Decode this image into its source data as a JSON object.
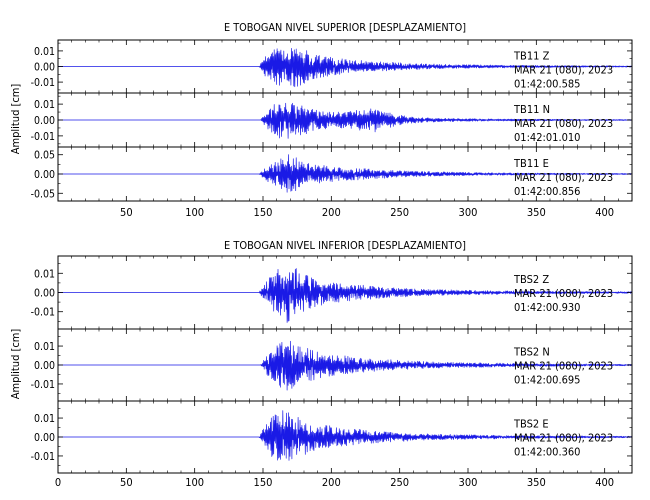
{
  "chart_data": [
    {
      "type": "line",
      "title": "E TOBOGAN NIVEL SUPERIOR [DESPLAZAMIENTO]",
      "ylabel": "Amplitud [cm]",
      "xlim": [
        0,
        420
      ],
      "xticks": [
        50,
        100,
        150,
        200,
        250,
        300,
        350,
        400
      ],
      "panels": [
        {
          "station": "TB11",
          "component": "Z",
          "date": "MAR 21 (080), 2023",
          "time": "01:42:00.585",
          "ylim": [
            -0.017,
            0.017
          ],
          "yticks": [
            "0.01",
            "0.00",
            "-0.01"
          ],
          "peak": 0.0145,
          "series": {
            "x": [
              0,
              147,
              152,
              158,
              163,
              167,
              171,
              175,
              179,
              184,
              190,
              196,
              203,
              212,
              222,
              232,
              245,
              258,
              275,
              295,
              320,
              350,
              380,
              410,
              420
            ],
            "env": [
              0,
              0,
              0.5,
              0.75,
              0.9,
              0.85,
              1.0,
              0.9,
              0.82,
              0.68,
              0.52,
              0.45,
              0.38,
              0.3,
              0.27,
              0.22,
              0.18,
              0.14,
              0.11,
              0.085,
              0.065,
              0.05,
              0.04,
              0.03,
              0.03
            ]
          }
        },
        {
          "station": "TB11",
          "component": "N",
          "date": "MAR 21 (080), 2023",
          "time": "01:42:01.010",
          "ylim": [
            -0.017,
            0.017
          ],
          "yticks": [
            "0.01",
            "0.00",
            "-0.01"
          ],
          "peak": 0.0125,
          "series": {
            "x": [
              0,
              148,
              153,
              158,
              164,
              170,
              176,
              182,
              188,
              194,
              200,
              208,
              216,
              225,
              232,
              238,
              244,
              250,
              258,
              268,
              282,
              300,
              330,
              370,
              420
            ],
            "env": [
              0,
              0,
              0.45,
              0.8,
              1.0,
              0.92,
              0.8,
              0.7,
              0.55,
              0.48,
              0.44,
              0.42,
              0.48,
              0.55,
              0.6,
              0.5,
              0.36,
              0.25,
              0.17,
              0.12,
              0.09,
              0.07,
              0.05,
              0.035,
              0.03
            ]
          }
        },
        {
          "station": "TB11",
          "component": "E",
          "date": "MAR 21 (080), 2023",
          "time": "01:42:00.856",
          "ylim": [
            -0.07,
            0.07
          ],
          "yticks": [
            "0.05",
            "0.00",
            "-0.05"
          ],
          "peak": 0.055,
          "series": {
            "x": [
              0,
              147,
              152,
              158,
              163,
              168,
              173,
              178,
              184,
              190,
              196,
              203,
              212,
              222,
              232,
              245,
              258,
              275,
              295,
              320,
              350,
              380,
              410,
              420
            ],
            "env": [
              0,
              0,
              0.3,
              0.55,
              0.8,
              1.0,
              0.85,
              0.65,
              0.5,
              0.45,
              0.4,
              0.36,
              0.3,
              0.27,
              0.22,
              0.18,
              0.14,
              0.11,
              0.08,
              0.06,
              0.045,
              0.035,
              0.03,
              0.03
            ]
          }
        }
      ]
    },
    {
      "type": "line",
      "title": "E TOBOGAN NIVEL INFERIOR [DESPLAZAMIENTO]",
      "ylabel": "Amplitud [cm]",
      "xlim": [
        0,
        420
      ],
      "xticks": [
        0,
        50,
        100,
        150,
        200,
        250,
        300,
        350,
        400
      ],
      "panels": [
        {
          "station": "TBS2",
          "component": "Z",
          "date": "MAR 21 (080), 2023",
          "time": "01:42:00.930",
          "ylim": [
            -0.019,
            0.019
          ],
          "yticks": [
            "0.01",
            "0.00",
            "-0.01"
          ],
          "peak": 0.016,
          "series": {
            "x": [
              0,
              147,
              152,
              157,
              162,
              166,
              170,
              174,
              178,
              183,
              189,
              196,
              205,
              215,
              228,
              242,
              258,
              275,
              295,
              320,
              350,
              380,
              410,
              420
            ],
            "env": [
              0,
              0,
              0.35,
              0.6,
              0.9,
              1.0,
              0.95,
              0.8,
              0.65,
              0.55,
              0.45,
              0.38,
              0.32,
              0.27,
              0.22,
              0.17,
              0.13,
              0.1,
              0.08,
              0.06,
              0.045,
              0.035,
              0.03,
              0.03
            ]
          }
        },
        {
          "station": "TBS2",
          "component": "N",
          "date": "MAR 21 (080), 2023",
          "time": "01:42:00.695",
          "ylim": [
            -0.019,
            0.019
          ],
          "yticks": [
            "0.01",
            "0.00",
            "-0.01"
          ],
          "peak": 0.0135,
          "series": {
            "x": [
              0,
              148,
              153,
              158,
              163,
              168,
              173,
              178,
              184,
              190,
              196,
              204,
              214,
              226,
              240,
              256,
              272,
              292,
              318,
              348,
              380,
              410,
              420
            ],
            "env": [
              0,
              0,
              0.4,
              0.65,
              0.9,
              1.0,
              0.9,
              0.75,
              0.65,
              0.55,
              0.48,
              0.4,
              0.34,
              0.28,
              0.22,
              0.17,
              0.13,
              0.1,
              0.08,
              0.06,
              0.045,
              0.035,
              0.03
            ]
          }
        },
        {
          "station": "TBS2",
          "component": "E",
          "date": "MAR 21 (080), 2023",
          "time": "01:42:00.360",
          "ylim": [
            -0.019,
            0.019
          ],
          "yticks": [
            "0.01",
            "0.00",
            "-0.01"
          ],
          "peak": 0.0145,
          "series": {
            "x": [
              0,
              147,
              152,
              157,
              161,
              165,
              170,
              176,
              182,
              188,
              195,
              203,
              212,
              222,
              234,
              248,
              264,
              282,
              304,
              330,
              360,
              390,
              420
            ],
            "env": [
              0,
              0,
              0.45,
              0.75,
              0.9,
              1.0,
              0.85,
              0.72,
              0.62,
              0.52,
              0.45,
              0.38,
              0.32,
              0.27,
              0.22,
              0.17,
              0.13,
              0.1,
              0.08,
              0.06,
              0.045,
              0.035,
              0.03
            ]
          }
        }
      ]
    }
  ],
  "colors": {
    "trace": "#1a1ae6",
    "axis": "#000000",
    "background": "#ffffff"
  }
}
